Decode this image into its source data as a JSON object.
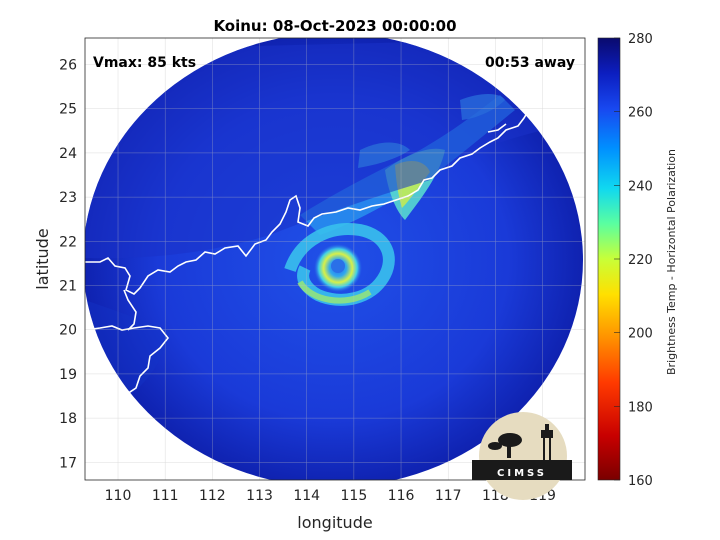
{
  "title": "Koinu: 08-Oct-2023 00:00:00",
  "vmax_label": "Vmax: 85 kts",
  "time_label": "00:53 away",
  "xlabel": "longitude",
  "ylabel": "latitude",
  "x_ticks": [
    "110",
    "111",
    "112",
    "113",
    "114",
    "115",
    "116",
    "117",
    "118",
    "119"
  ],
  "y_ticks": [
    "17",
    "18",
    "19",
    "20",
    "21",
    "22",
    "23",
    "24",
    "25",
    "26"
  ],
  "colorbar": {
    "label": "Brightness Temp - Horizontal Polarization",
    "ticks": [
      "160",
      "180",
      "200",
      "220",
      "240",
      "260",
      "280"
    ],
    "range": [
      160,
      280
    ]
  },
  "logo": {
    "text": "CIMSS"
  },
  "colors": {
    "background_field": "#1a2fd6",
    "swath_edge": "#0a1aa8",
    "storm_core": "#e8e840",
    "coastline": "#ffffff"
  },
  "chart_data": {
    "type": "heatmap",
    "title": "Koinu: 08-Oct-2023 00:00:00",
    "xlabel": "longitude",
    "ylabel": "latitude",
    "xlim": [
      109.3,
      119.9
    ],
    "ylim": [
      16.6,
      26.6
    ],
    "storm_center": {
      "lon": 114.7,
      "lat": 21.1
    },
    "colorbar_range": [
      160,
      280
    ]
  }
}
